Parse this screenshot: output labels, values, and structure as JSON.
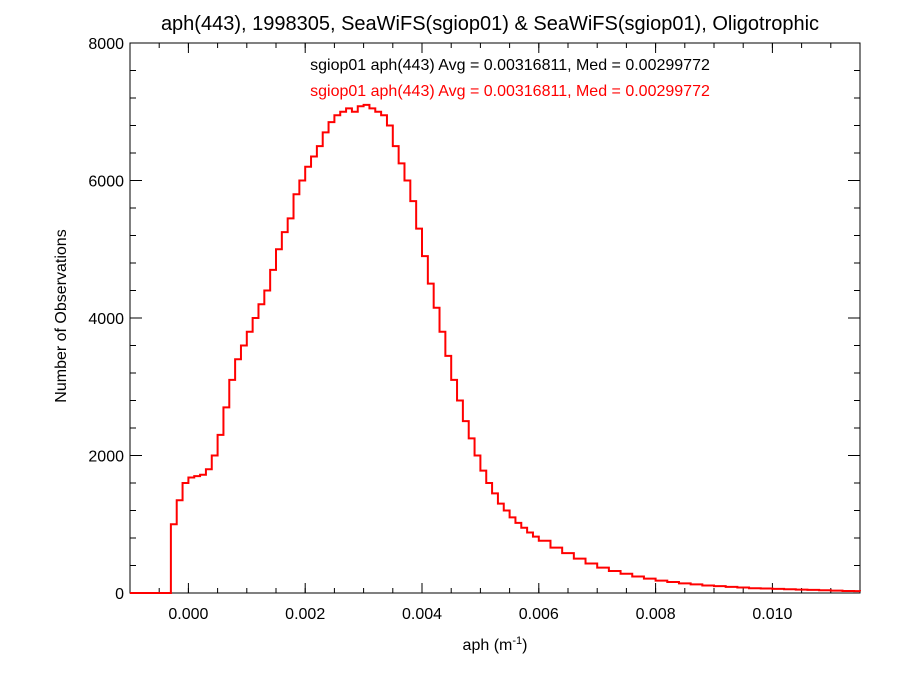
{
  "chart_data": {
    "type": "line",
    "step": true,
    "title": "aph(443), 1998305, SeaWiFS(sgiop01) & SeaWiFS(sgiop01), Oligotrophic",
    "xlabel": "aph (m",
    "xlabel_sup": "-1",
    "xlabel_close": ")",
    "ylabel": "Number of Observations",
    "xlim": [
      -0.001,
      0.0115
    ],
    "ylim": [
      0,
      8000
    ],
    "x_ticks": [
      0.0,
      0.002,
      0.004,
      0.006,
      0.008,
      0.01
    ],
    "x_tick_labels": [
      "0.000",
      "0.002",
      "0.004",
      "0.006",
      "0.008",
      "0.010"
    ],
    "y_ticks": [
      0,
      2000,
      4000,
      6000,
      8000
    ],
    "y_tick_labels": [
      "0",
      "2000",
      "4000",
      "6000",
      "8000"
    ],
    "grid": false,
    "legend_position": "top",
    "colors": {
      "series_black": "#000000",
      "series_red": "#ff0000"
    },
    "annotations": [
      {
        "text": "sgiop01 aph(443) Avg = 0.00316811, Med = 0.00299772",
        "color": "#000000"
      },
      {
        "text": "sgiop01 aph(443) Avg = 0.00316811, Med = 0.00299772",
        "color": "#ff0000"
      }
    ],
    "series": [
      {
        "color": "#ff0000",
        "x": [
          -0.001,
          -0.0006,
          -0.0004,
          -0.0003,
          -0.0002,
          -0.0001,
          0.0,
          0.0001,
          0.0002,
          0.0003,
          0.0004,
          0.0005,
          0.0006,
          0.0007,
          0.0008,
          0.0009,
          0.001,
          0.0011,
          0.0012,
          0.0013,
          0.0014,
          0.0015,
          0.0016,
          0.0017,
          0.0018,
          0.0019,
          0.002,
          0.0021,
          0.0022,
          0.0023,
          0.0024,
          0.0025,
          0.0026,
          0.0027,
          0.0028,
          0.0029,
          0.003,
          0.0031,
          0.0032,
          0.0033,
          0.0034,
          0.0035,
          0.0036,
          0.0037,
          0.0038,
          0.0039,
          0.004,
          0.0041,
          0.0042,
          0.0043,
          0.0044,
          0.0045,
          0.0046,
          0.0047,
          0.0048,
          0.0049,
          0.005,
          0.0051,
          0.0052,
          0.0053,
          0.0054,
          0.0055,
          0.0056,
          0.0057,
          0.0058,
          0.0059,
          0.006,
          0.0062,
          0.0064,
          0.0066,
          0.0068,
          0.007,
          0.0072,
          0.0074,
          0.0076,
          0.0078,
          0.008,
          0.0082,
          0.0084,
          0.0086,
          0.0088,
          0.009,
          0.0092,
          0.0094,
          0.0096,
          0.0098,
          0.01,
          0.0102,
          0.0104,
          0.0106,
          0.0108,
          0.011,
          0.0112,
          0.0114,
          0.0115
        ],
        "y": [
          0,
          0,
          0,
          1000,
          1350,
          1600,
          1680,
          1700,
          1720,
          1800,
          2000,
          2300,
          2700,
          3100,
          3400,
          3600,
          3800,
          4000,
          4200,
          4400,
          4700,
          5000,
          5250,
          5450,
          5800,
          6000,
          6200,
          6350,
          6500,
          6700,
          6850,
          6950,
          7000,
          7050,
          7000,
          7080,
          7100,
          7050,
          7000,
          6950,
          6800,
          6500,
          6250,
          6000,
          5700,
          5300,
          4900,
          4500,
          4150,
          3800,
          3450,
          3100,
          2800,
          2500,
          2250,
          2000,
          1780,
          1600,
          1450,
          1300,
          1200,
          1100,
          1020,
          950,
          880,
          820,
          760,
          660,
          580,
          500,
          430,
          370,
          320,
          280,
          240,
          210,
          180,
          160,
          140,
          125,
          110,
          100,
          90,
          80,
          70,
          65,
          60,
          55,
          50,
          45,
          40,
          35,
          30,
          28,
          25
        ]
      },
      {
        "color": "#000000",
        "x": [],
        "y": []
      }
    ]
  }
}
